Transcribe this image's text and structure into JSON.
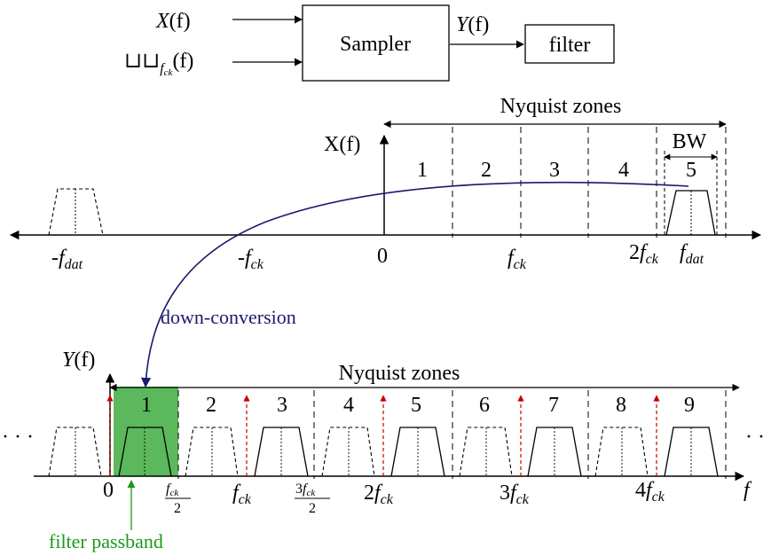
{
  "block_diagram": {
    "input_x": {
      "main": "X",
      "arg": "(f)"
    },
    "input_comb": {
      "main": "⊔⊔",
      "sub": "f",
      "subsub": "ck",
      "arg": "(f)"
    },
    "sampler_label": "Sampler",
    "output_y": {
      "main": "Y",
      "arg": "(f)"
    },
    "filter_label": "filter"
  },
  "top_spectrum": {
    "nyquist_label": "Nyquist zones",
    "axis_label": "X(f)",
    "bw_label": "BW",
    "zones": [
      "1",
      "2",
      "3",
      "4",
      "5"
    ],
    "ticks": {
      "neg_fdat": {
        "pre": "-",
        "main": "f",
        "sub": "dat"
      },
      "neg_fck": {
        "pre": "-",
        "main": "f",
        "sub": "ck"
      },
      "zero": "0",
      "fck": {
        "pre": "",
        "main": "f",
        "sub": "ck"
      },
      "two_fck": {
        "pre": "2",
        "main": "f",
        "sub": "ck"
      },
      "fdat": {
        "pre": "",
        "main": "f",
        "sub": "dat"
      }
    }
  },
  "conversion_label": "down-conversion",
  "bottom_spectrum": {
    "axis_label": {
      "main": "Y",
      "arg": "(f)"
    },
    "nyquist_label": "Nyquist zones",
    "zones": [
      "1",
      "2",
      "3",
      "4",
      "5",
      "6",
      "7",
      "8",
      "9"
    ],
    "ellipsis_left": "· · ·",
    "ellipsis_right": "· ·",
    "ticks": {
      "zero": "0",
      "half_fck": {
        "num_main": "f",
        "num_sub": "ck",
        "den": "2"
      },
      "fck": {
        "pre": "",
        "main": "f",
        "sub": "ck"
      },
      "three_half_fck": {
        "num_pre": "3",
        "num_main": "f",
        "num_sub": "ck",
        "den": "2"
      },
      "two_fck": {
        "pre": "2",
        "main": "f",
        "sub": "ck"
      },
      "three_fck": {
        "pre": "3",
        "main": "f",
        "sub": "ck"
      },
      "four_fck": {
        "pre": "4",
        "main": "f",
        "sub": "ck"
      }
    },
    "freq_label": "f",
    "passband_label": "filter passband"
  },
  "colors": {
    "passband_fill": "#5cb85c",
    "passband_label": "#1a9a1a",
    "conversion": "#1a1a6e",
    "sample_arrow": "#cc0000"
  }
}
